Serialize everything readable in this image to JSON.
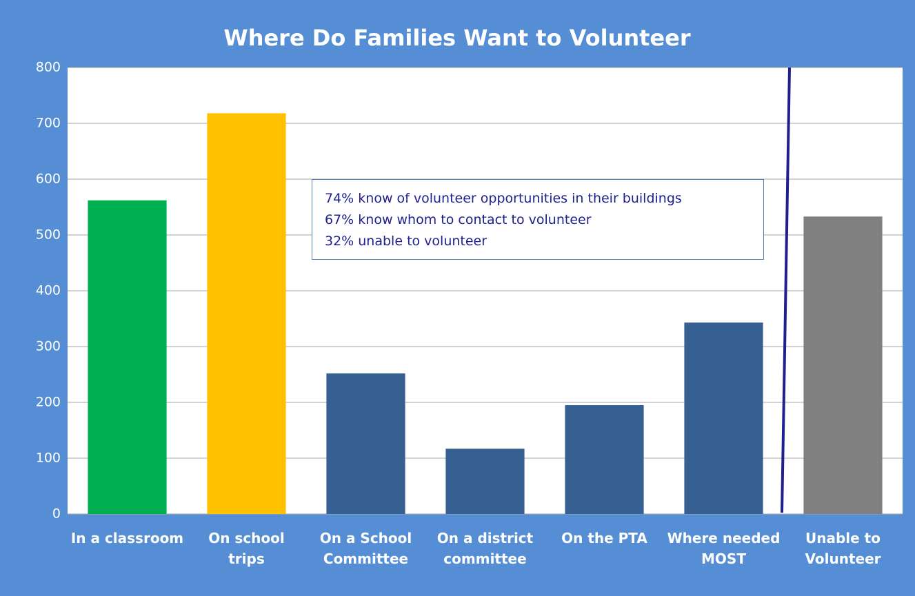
{
  "chart_data": {
    "type": "bar",
    "title": "Where Do Families Want to Volunteer",
    "categories": [
      "In a classroom",
      "On school\ntrips",
      "On a School\nCommittee",
      "On a district\ncommittee",
      "On the PTA",
      "Where needed\nMOST",
      "Unable to\nVolunteer"
    ],
    "values": [
      562,
      718,
      252,
      117,
      195,
      343,
      533
    ],
    "colors": [
      "#00b050",
      "#ffc000",
      "#376092",
      "#376092",
      "#376092",
      "#376092",
      "#808080"
    ],
    "ylim": [
      0,
      800
    ],
    "yticks": [
      0,
      100,
      200,
      300,
      400,
      500,
      600,
      700,
      800
    ],
    "grid": true,
    "annotations": [
      "74% know of volunteer opportunities in their buildings",
      "67% know whom to contact to volunteer",
      "32% unable to volunteer"
    ]
  }
}
